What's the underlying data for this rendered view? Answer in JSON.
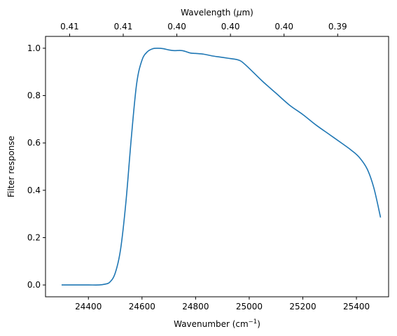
{
  "chart_data": {
    "type": "line",
    "title": "",
    "xlabel": "Wavenumber (cm",
    "xlabel_sup": "−1",
    "xlabel_close": ")",
    "top_xlabel": "Wavelength (",
    "top_xlabel_mu": "μ",
    "top_xlabel_unit": "m)",
    "ylabel": "Filter response",
    "xlim": [
      24240,
      25520
    ],
    "ylim": [
      -0.05,
      1.05
    ],
    "x_ticks": [
      24400,
      24600,
      24800,
      25000,
      25200,
      25400
    ],
    "x_tick_labels": [
      "24400",
      "24600",
      "24800",
      "25000",
      "25200",
      "25400"
    ],
    "y_ticks": [
      0.0,
      0.2,
      0.4,
      0.6,
      0.8,
      1.0
    ],
    "y_tick_labels": [
      "0.0",
      "0.2",
      "0.4",
      "0.6",
      "0.8",
      "1.0"
    ],
    "top_ticks": [
      24330,
      24530,
      24730,
      24930,
      25130,
      25330
    ],
    "top_tick_labels": [
      "0.41",
      "0.41",
      "0.40",
      "0.40",
      "0.40",
      "0.39"
    ],
    "grid": false,
    "series": [
      {
        "color": "#1f77b4",
        "x": [
          24300,
          24350,
          24400,
          24440,
          24460,
          24480,
          24500,
          24520,
          24540,
          24560,
          24580,
          24600,
          24620,
          24640,
          24660,
          24680,
          24700,
          24720,
          24750,
          24780,
          24800,
          24830,
          24860,
          24890,
          24920,
          24950,
          24970,
          25000,
          25050,
          25100,
          25150,
          25200,
          25250,
          25300,
          25350,
          25380,
          25410,
          25440,
          25465,
          25490
        ],
        "y": [
          0.0,
          0.0,
          0.0,
          0.0,
          0.003,
          0.012,
          0.05,
          0.15,
          0.35,
          0.62,
          0.85,
          0.95,
          0.985,
          0.998,
          1.0,
          0.998,
          0.993,
          0.99,
          0.99,
          0.98,
          0.978,
          0.975,
          0.968,
          0.963,
          0.958,
          0.953,
          0.945,
          0.915,
          0.86,
          0.81,
          0.76,
          0.72,
          0.675,
          0.635,
          0.595,
          0.57,
          0.54,
          0.49,
          0.41,
          0.285
        ]
      }
    ]
  }
}
